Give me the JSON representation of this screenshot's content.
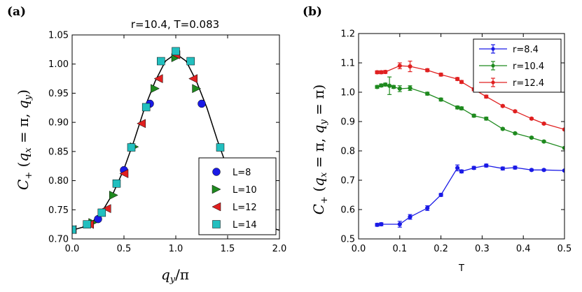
{
  "chart_data": [
    {
      "panel": "(a)",
      "type": "scatter",
      "title": "r=10.4, T=0.083",
      "xlabel": "q_y/π",
      "ylabel": "C_+(q_x=π, q_y)",
      "xlim": [
        0.0,
        2.0
      ],
      "ylim": [
        0.7,
        1.05
      ],
      "xticks": [
        "0.0",
        "0.5",
        "1.0",
        "1.5",
        "2.0"
      ],
      "yticks": [
        "0.70",
        "0.75",
        "0.80",
        "0.85",
        "0.90",
        "0.95",
        "1.00",
        "1.05"
      ],
      "legend_position": "lower-right",
      "fit_curve": {
        "x": [
          0.0,
          0.1,
          0.2,
          0.3,
          0.4,
          0.5,
          0.6,
          0.7,
          0.8,
          0.9,
          1.0,
          1.1,
          1.2,
          1.3,
          1.4,
          1.5,
          1.6,
          1.7,
          1.8,
          1.9,
          2.0
        ],
        "y": [
          0.715,
          0.72,
          0.73,
          0.75,
          0.78,
          0.82,
          0.87,
          0.925,
          0.97,
          1.005,
          1.018,
          1.005,
          0.97,
          0.925,
          0.87,
          0.82,
          0.78,
          0.75,
          0.73,
          0.72,
          0.715
        ]
      },
      "series": [
        {
          "name": "L=8",
          "marker": "circle",
          "color": "#1a1ae6",
          "x": [
            0.0,
            0.25,
            0.5,
            0.75,
            1.0,
            1.25
          ],
          "y": [
            0.716,
            0.734,
            0.818,
            0.932,
            1.016,
            0.932
          ]
        },
        {
          "name": "L=10",
          "marker": "triangle-right",
          "color": "#1f8a1f",
          "x": [
            0.0,
            0.2,
            0.4,
            0.6,
            0.8,
            1.0,
            1.2
          ],
          "y": [
            0.716,
            0.728,
            0.775,
            0.858,
            0.958,
            1.011,
            0.958
          ]
        },
        {
          "name": "L=12",
          "marker": "triangle-left",
          "color": "#e02020",
          "x": [
            0.0,
            0.167,
            0.333,
            0.5,
            0.667,
            0.833,
            1.0,
            1.167
          ],
          "y": [
            0.716,
            0.725,
            0.752,
            0.812,
            0.898,
            0.975,
            1.016,
            0.975
          ]
        },
        {
          "name": "L=14",
          "marker": "square",
          "color": "#22bfbf",
          "x": [
            0.0,
            0.143,
            0.286,
            0.429,
            0.571,
            0.714,
            0.857,
            1.0,
            1.143,
            1.429
          ],
          "y": [
            0.716,
            0.725,
            0.745,
            0.795,
            0.857,
            0.926,
            1.005,
            1.022,
            1.005,
            0.857
          ]
        }
      ]
    },
    {
      "panel": "(b)",
      "type": "line",
      "title": "",
      "xlabel": "T",
      "ylabel": "C_+(q_x=π, q_y=π)",
      "xlim": [
        0.0,
        0.5
      ],
      "ylim": [
        0.5,
        1.2
      ],
      "xticks": [
        "0.0",
        "0.1",
        "0.2",
        "0.3",
        "0.4",
        "0.5"
      ],
      "yticks": [
        "0.5",
        "0.6",
        "0.7",
        "0.8",
        "0.9",
        "1.0",
        "1.1",
        "1.2"
      ],
      "legend_position": "top-right",
      "series": [
        {
          "name": "r=8.4",
          "color": "#1a1ae6",
          "x": [
            0.045,
            0.055,
            0.1,
            0.125,
            0.167,
            0.2,
            0.24,
            0.25,
            0.28,
            0.31,
            0.35,
            0.38,
            0.42,
            0.45,
            0.5
          ],
          "y": [
            0.548,
            0.55,
            0.55,
            0.575,
            0.605,
            0.65,
            0.742,
            0.73,
            0.742,
            0.75,
            0.74,
            0.743,
            0.735,
            0.735,
            0.733
          ],
          "err": [
            0.005,
            0.005,
            0.01,
            0.008,
            0.008,
            0.005,
            0.01,
            0.005,
            0.005,
            0.005,
            0.005,
            0.005,
            0.003,
            0.003,
            0.003
          ]
        },
        {
          "name": "r=10.4",
          "color": "#1f8a1f",
          "x": [
            0.045,
            0.055,
            0.065,
            0.075,
            0.085,
            0.1,
            0.125,
            0.167,
            0.2,
            0.24,
            0.25,
            0.28,
            0.31,
            0.35,
            0.38,
            0.42,
            0.45,
            0.5
          ],
          "y": [
            1.018,
            1.023,
            1.026,
            1.022,
            1.018,
            1.012,
            1.014,
            0.995,
            0.975,
            0.948,
            0.945,
            0.92,
            0.91,
            0.875,
            0.86,
            0.845,
            0.832,
            0.81
          ],
          "err": [
            0.005,
            0.005,
            0.005,
            0.03,
            0.005,
            0.01,
            0.008,
            0.005,
            0.005,
            0.005,
            0.005,
            0.005,
            0.005,
            0.003,
            0.003,
            0.003,
            0.003,
            0.003
          ]
        },
        {
          "name": "r=12.4",
          "color": "#e02020",
          "x": [
            0.045,
            0.055,
            0.065,
            0.1,
            0.125,
            0.167,
            0.2,
            0.24,
            0.25,
            0.28,
            0.31,
            0.35,
            0.38,
            0.42,
            0.45,
            0.5
          ],
          "y": [
            1.068,
            1.068,
            1.069,
            1.09,
            1.088,
            1.075,
            1.06,
            1.045,
            1.035,
            1.01,
            0.985,
            0.953,
            0.935,
            0.91,
            0.893,
            0.873
          ],
          "err": [
            0.005,
            0.005,
            0.005,
            0.01,
            0.018,
            0.005,
            0.005,
            0.005,
            0.005,
            0.005,
            0.005,
            0.003,
            0.003,
            0.003,
            0.003,
            0.003
          ]
        }
      ]
    }
  ]
}
